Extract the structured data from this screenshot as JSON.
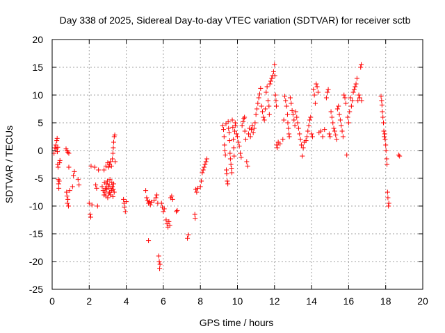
{
  "chart_data": {
    "type": "scatter",
    "title": "Day 338 of 2025, Sidereal Day-to-day VTEC variation (SDTVAR) for receiver sctb",
    "xlabel": "GPS time / hours",
    "ylabel": "SDTVAR / TECUs",
    "xlim": [
      0,
      20
    ],
    "ylim": [
      -25,
      20
    ],
    "xticks": [
      0,
      2,
      4,
      6,
      8,
      10,
      12,
      14,
      16,
      18,
      20
    ],
    "yticks": [
      -25,
      -20,
      -15,
      -10,
      -5,
      0,
      5,
      10,
      15,
      20
    ],
    "grid": true,
    "marker": "plus",
    "color": "#ff0000",
    "series": [
      {
        "name": "SDTVAR",
        "points": [
          [
            0.1,
            -0.5
          ],
          [
            0.15,
            0.5
          ],
          [
            0.2,
            1.0
          ],
          [
            0.22,
            0.3
          ],
          [
            0.25,
            1.8
          ],
          [
            0.27,
            2.2
          ],
          [
            0.28,
            -0.2
          ],
          [
            0.3,
            0.6
          ],
          [
            0.3,
            -2.5
          ],
          [
            0.32,
            -3.0
          ],
          [
            0.33,
            -5.2
          ],
          [
            0.35,
            -6.0
          ],
          [
            0.36,
            -6.8
          ],
          [
            0.38,
            -5.5
          ],
          [
            0.4,
            -2.2
          ],
          [
            0.42,
            -1.8
          ],
          [
            0.75,
            0.3
          ],
          [
            0.8,
            0.0
          ],
          [
            0.85,
            -0.3
          ],
          [
            0.9,
            -0.5
          ],
          [
            0.78,
            -7.5
          ],
          [
            0.8,
            -8.2
          ],
          [
            0.82,
            -9.5
          ],
          [
            0.85,
            -8.8
          ],
          [
            0.88,
            -10.0
          ],
          [
            0.9,
            -3.0
          ],
          [
            0.95,
            -7.2
          ],
          [
            1.1,
            -6.5
          ],
          [
            1.15,
            -4.5
          ],
          [
            1.2,
            -3.8
          ],
          [
            1.4,
            -5.2
          ],
          [
            1.45,
            -6.2
          ],
          [
            2.0,
            -9.5
          ],
          [
            2.05,
            -11.5
          ],
          [
            2.08,
            -12.0
          ],
          [
            2.1,
            -2.8
          ],
          [
            2.15,
            -9.8
          ],
          [
            2.3,
            -3.0
          ],
          [
            2.35,
            -6.2
          ],
          [
            2.4,
            -6.8
          ],
          [
            2.45,
            -10.0
          ],
          [
            2.5,
            -3.5
          ],
          [
            2.7,
            -6.5
          ],
          [
            2.75,
            -7.2
          ],
          [
            2.8,
            -8.0
          ],
          [
            2.82,
            -5.8
          ],
          [
            2.85,
            -7.5
          ],
          [
            2.88,
            -6.8
          ],
          [
            2.9,
            -8.2
          ],
          [
            2.92,
            -6.0
          ],
          [
            2.95,
            -7.0
          ],
          [
            2.98,
            -5.5
          ],
          [
            3.0,
            -8.5
          ],
          [
            3.02,
            -6.5
          ],
          [
            3.05,
            -7.8
          ],
          [
            3.08,
            -6.2
          ],
          [
            3.1,
            -7.5
          ],
          [
            3.12,
            -5.2
          ],
          [
            3.15,
            -8.0
          ],
          [
            3.18,
            -6.8
          ],
          [
            3.2,
            -7.2
          ],
          [
            3.22,
            -5.8
          ],
          [
            3.25,
            -6.5
          ],
          [
            3.28,
            -8.3
          ],
          [
            3.3,
            -7.0
          ],
          [
            3.32,
            -6.0
          ],
          [
            3.35,
            -7.5
          ],
          [
            2.8,
            -3.5
          ],
          [
            2.9,
            -2.8
          ],
          [
            3.0,
            -2.2
          ],
          [
            3.05,
            -3.0
          ],
          [
            3.1,
            -2.5
          ],
          [
            3.15,
            -2.0
          ],
          [
            3.2,
            -2.8
          ],
          [
            3.25,
            -1.5
          ],
          [
            3.28,
            -0.5
          ],
          [
            3.3,
            0.5
          ],
          [
            3.32,
            1.5
          ],
          [
            3.35,
            2.5
          ],
          [
            3.38,
            2.8
          ],
          [
            3.4,
            -2.0
          ],
          [
            3.85,
            -8.8
          ],
          [
            3.88,
            -9.5
          ],
          [
            3.9,
            -10.2
          ],
          [
            3.95,
            -11.0
          ],
          [
            4.0,
            -9.2
          ],
          [
            5.05,
            -7.2
          ],
          [
            5.1,
            -8.5
          ],
          [
            5.15,
            -9.0
          ],
          [
            5.2,
            -9.5
          ],
          [
            5.25,
            -9.2
          ],
          [
            5.3,
            -9.8
          ],
          [
            5.35,
            -9.3
          ],
          [
            5.2,
            -16.2
          ],
          [
            5.5,
            -9.0
          ],
          [
            5.6,
            -8.5
          ],
          [
            5.65,
            -8.0
          ],
          [
            5.7,
            -9.5
          ],
          [
            5.75,
            -19.0
          ],
          [
            5.78,
            -20.0
          ],
          [
            5.8,
            -21.3
          ],
          [
            5.82,
            -20.5
          ],
          [
            5.9,
            -9.5
          ],
          [
            5.95,
            -10.2
          ],
          [
            6.0,
            -11.0
          ],
          [
            6.05,
            -10.5
          ],
          [
            6.15,
            -12.5
          ],
          [
            6.2,
            -13.2
          ],
          [
            6.25,
            -13.8
          ],
          [
            6.3,
            -12.8
          ],
          [
            6.35,
            -13.5
          ],
          [
            6.4,
            -8.5
          ],
          [
            6.45,
            -8.2
          ],
          [
            6.5,
            -8.8
          ],
          [
            6.7,
            -11.0
          ],
          [
            6.75,
            -10.8
          ],
          [
            7.3,
            -15.8
          ],
          [
            7.35,
            -15.2
          ],
          [
            7.7,
            -11.5
          ],
          [
            7.72,
            -12.2
          ],
          [
            7.75,
            -7.0
          ],
          [
            7.8,
            -7.5
          ],
          [
            7.85,
            -6.8
          ],
          [
            8.0,
            -6.5
          ],
          [
            8.05,
            -5.5
          ],
          [
            8.1,
            -4.0
          ],
          [
            8.15,
            -3.5
          ],
          [
            8.2,
            -3.0
          ],
          [
            8.25,
            -2.5
          ],
          [
            8.3,
            -2.0
          ],
          [
            8.35,
            -1.5
          ],
          [
            9.2,
            4.5
          ],
          [
            9.25,
            3.8
          ],
          [
            9.28,
            2.5
          ],
          [
            9.3,
            1.0
          ],
          [
            9.32,
            0.0
          ],
          [
            9.35,
            -0.8
          ],
          [
            9.38,
            4.8
          ],
          [
            9.4,
            -3.5
          ],
          [
            9.42,
            -4.2
          ],
          [
            9.45,
            -5.5
          ],
          [
            9.48,
            -6.0
          ],
          [
            9.5,
            5.2
          ],
          [
            9.52,
            4.0
          ],
          [
            9.55,
            3.2
          ],
          [
            9.58,
            1.8
          ],
          [
            9.6,
            -0.5
          ],
          [
            9.62,
            -1.5
          ],
          [
            9.65,
            -2.5
          ],
          [
            9.68,
            -3.2
          ],
          [
            9.7,
            -4.0
          ],
          [
            9.72,
            5.5
          ],
          [
            9.75,
            4.2
          ],
          [
            9.78,
            2.0
          ],
          [
            9.8,
            0.5
          ],
          [
            9.82,
            -1.0
          ],
          [
            9.85,
            3.5
          ],
          [
            9.88,
            5.0
          ],
          [
            9.9,
            4.5
          ],
          [
            9.95,
            3.0
          ],
          [
            10.0,
            2.5
          ],
          [
            10.05,
            1.5
          ],
          [
            10.1,
            0.8
          ],
          [
            10.15,
            -0.5
          ],
          [
            10.2,
            -1.2
          ],
          [
            10.25,
            4.5
          ],
          [
            10.3,
            5.2
          ],
          [
            10.35,
            5.8
          ],
          [
            10.38,
            6.0
          ],
          [
            10.4,
            3.5
          ],
          [
            10.45,
            2.0
          ],
          [
            10.5,
            -2.0
          ],
          [
            10.55,
            -2.8
          ],
          [
            10.6,
            3.0
          ],
          [
            10.65,
            4.0
          ],
          [
            10.7,
            2.5
          ],
          [
            10.75,
            3.8
          ],
          [
            10.8,
            4.5
          ],
          [
            10.85,
            3.2
          ],
          [
            10.9,
            4.0
          ],
          [
            10.95,
            5.0
          ],
          [
            11.0,
            6.5
          ],
          [
            11.05,
            7.5
          ],
          [
            11.1,
            8.5
          ],
          [
            11.15,
            9.5
          ],
          [
            11.2,
            10.2
          ],
          [
            11.25,
            11.2
          ],
          [
            11.3,
            8.0
          ],
          [
            11.35,
            7.0
          ],
          [
            11.4,
            6.0
          ],
          [
            11.45,
            5.5
          ],
          [
            11.5,
            7.5
          ],
          [
            11.55,
            10.5
          ],
          [
            11.6,
            11.5
          ],
          [
            11.65,
            9.0
          ],
          [
            11.7,
            8.0
          ],
          [
            11.72,
            6.5
          ],
          [
            11.75,
            12.0
          ],
          [
            11.8,
            12.5
          ],
          [
            11.85,
            13.0
          ],
          [
            11.9,
            13.5
          ],
          [
            11.95,
            14.2
          ],
          [
            12.0,
            15.5
          ],
          [
            12.02,
            13.5
          ],
          [
            12.05,
            10.0
          ],
          [
            12.08,
            9.0
          ],
          [
            12.1,
            8.0
          ],
          [
            12.12,
            1.0
          ],
          [
            12.15,
            0.5
          ],
          [
            12.2,
            1.5
          ],
          [
            12.3,
            1.2
          ],
          [
            12.45,
            2.0
          ],
          [
            12.5,
            5.5
          ],
          [
            12.55,
            9.8
          ],
          [
            12.6,
            9.0
          ],
          [
            12.65,
            8.0
          ],
          [
            12.7,
            6.5
          ],
          [
            12.72,
            5.0
          ],
          [
            12.75,
            4.0
          ],
          [
            12.78,
            3.0
          ],
          [
            12.8,
            2.5
          ],
          [
            12.85,
            9.5
          ],
          [
            12.9,
            8.5
          ],
          [
            12.95,
            7.2
          ],
          [
            13.0,
            6.5
          ],
          [
            13.05,
            5.5
          ],
          [
            13.1,
            4.5
          ],
          [
            13.15,
            7.0
          ],
          [
            13.2,
            6.0
          ],
          [
            13.25,
            5.0
          ],
          [
            13.3,
            4.0
          ],
          [
            13.35,
            3.0
          ],
          [
            13.4,
            2.0
          ],
          [
            13.45,
            1.0
          ],
          [
            13.5,
            -1.0
          ],
          [
            13.55,
            0.5
          ],
          [
            13.6,
            1.5
          ],
          [
            13.7,
            1.8
          ],
          [
            13.75,
            2.5
          ],
          [
            13.8,
            3.5
          ],
          [
            13.85,
            4.5
          ],
          [
            13.9,
            5.5
          ],
          [
            13.95,
            6.0
          ],
          [
            14.0,
            3.0
          ],
          [
            14.05,
            2.5
          ],
          [
            14.1,
            11.0
          ],
          [
            14.15,
            10.0
          ],
          [
            14.2,
            8.5
          ],
          [
            14.25,
            12.0
          ],
          [
            14.3,
            11.5
          ],
          [
            14.35,
            10.5
          ],
          [
            14.4,
            3.2
          ],
          [
            14.5,
            3.5
          ],
          [
            14.6,
            2.5
          ],
          [
            14.7,
            3.8
          ],
          [
            14.8,
            9.5
          ],
          [
            14.85,
            10.5
          ],
          [
            14.9,
            11.0
          ],
          [
            14.95,
            3.0
          ],
          [
            15.0,
            2.5
          ],
          [
            15.05,
            7.0
          ],
          [
            15.1,
            6.0
          ],
          [
            15.15,
            5.0
          ],
          [
            15.2,
            4.0
          ],
          [
            15.25,
            3.5
          ],
          [
            15.3,
            2.8
          ],
          [
            15.35,
            2.0
          ],
          [
            15.4,
            7.5
          ],
          [
            15.45,
            8.0
          ],
          [
            15.5,
            6.5
          ],
          [
            15.55,
            5.5
          ],
          [
            15.6,
            4.5
          ],
          [
            15.65,
            3.5
          ],
          [
            15.7,
            2.5
          ],
          [
            15.75,
            10.0
          ],
          [
            15.8,
            9.5
          ],
          [
            15.85,
            8.5
          ],
          [
            15.9,
            -0.8
          ],
          [
            15.95,
            6.0
          ],
          [
            16.0,
            5.0
          ],
          [
            16.05,
            7.0
          ],
          [
            16.1,
            9.5
          ],
          [
            16.15,
            8.0
          ],
          [
            16.2,
            9.0
          ],
          [
            16.25,
            10.5
          ],
          [
            16.3,
            11.0
          ],
          [
            16.35,
            11.5
          ],
          [
            16.4,
            12.0
          ],
          [
            16.45,
            13.0
          ],
          [
            16.5,
            9.0
          ],
          [
            16.55,
            10.0
          ],
          [
            16.6,
            9.5
          ],
          [
            16.65,
            15.0
          ],
          [
            16.68,
            15.5
          ],
          [
            16.7,
            9.0
          ],
          [
            17.75,
            9.8
          ],
          [
            17.78,
            9.0
          ],
          [
            17.8,
            8.2
          ],
          [
            17.82,
            7.0
          ],
          [
            17.85,
            6.0
          ],
          [
            17.88,
            5.0
          ],
          [
            17.9,
            3.5
          ],
          [
            17.92,
            2.5
          ],
          [
            17.95,
            3.0
          ],
          [
            17.97,
            2.0
          ],
          [
            18.0,
            1.0
          ],
          [
            18.02,
            0.0
          ],
          [
            18.05,
            -1.5
          ],
          [
            18.07,
            -2.5
          ],
          [
            18.1,
            -7.5
          ],
          [
            18.12,
            -8.5
          ],
          [
            18.15,
            -10.0
          ],
          [
            18.17,
            -9.5
          ],
          [
            18.7,
            -0.8
          ],
          [
            18.75,
            -1.0
          ]
        ]
      }
    ]
  }
}
